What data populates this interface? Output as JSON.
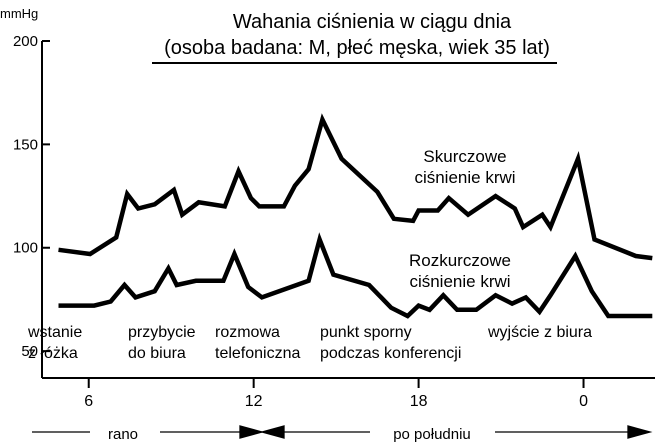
{
  "chart_data": {
    "type": "line",
    "title": "Wahania ciśnienia w ciągu dnia",
    "subtitle": "(osoba badana: M, płeć męska, wiek 35 lat)",
    "y_label": "mmHg",
    "xlim": [
      4.3,
      26.6
    ],
    "xticks": [
      6,
      12,
      18,
      {
        "value": 24,
        "label": "0"
      }
    ],
    "ylim": [
      37,
      200
    ],
    "yticks": [
      50,
      100,
      150,
      200
    ],
    "series": [
      {
        "name": "Skurczowe ciśnienie krwi",
        "color": "#000000",
        "x": [
          4.9,
          6.05,
          7,
          7.4,
          7.8,
          8.4,
          9.1,
          9.4,
          10,
          10.95,
          11.45,
          11.9,
          12.2,
          13.1,
          13.5,
          14,
          14.5,
          15.2,
          16.5,
          17.1,
          17.8,
          18,
          18.7,
          19.1,
          19.8,
          20.8,
          21.5,
          21.8,
          22.5,
          22.8,
          23.8,
          24.4,
          25.9,
          26.5
        ],
        "values": [
          99,
          97,
          105,
          126,
          119,
          121,
          128,
          116,
          122,
          120,
          137,
          124,
          120,
          120,
          130,
          138,
          162,
          143,
          127,
          114,
          113,
          118,
          118,
          124,
          116,
          125,
          119,
          110,
          116,
          110,
          143,
          104,
          96,
          95
        ]
      },
      {
        "name": "Rozkurczowe ciśnienie krwi",
        "color": "#000000",
        "x": [
          4.9,
          6.2,
          6.8,
          7.3,
          7.7,
          8.4,
          8.9,
          9.2,
          9.9,
          10.9,
          11.3,
          11.8,
          12.3,
          14,
          14.4,
          14.9,
          16.2,
          17,
          17.6,
          18,
          18.4,
          18.9,
          19.4,
          20.1,
          20.8,
          21.4,
          21.9,
          22.4,
          22.8,
          23.7,
          24.3,
          24.9,
          26.5
        ],
        "values": [
          72,
          72,
          74,
          82,
          76,
          79,
          90,
          82,
          84,
          84,
          97,
          81,
          76,
          84,
          104,
          87,
          82,
          71,
          67,
          72,
          70,
          77,
          70,
          70,
          77,
          73,
          76,
          69,
          77,
          96,
          79,
          67,
          67
        ]
      }
    ],
    "annotations": [
      {
        "lines": [
          "wstanie",
          "z łóżka"
        ]
      },
      {
        "lines": [
          "przybycie",
          "do biura"
        ]
      },
      {
        "lines": [
          "rozmowa",
          "telefoniczna"
        ]
      },
      {
        "lines": [
          "punkt sporny",
          "podczas konferencji"
        ]
      },
      {
        "lines": [
          "wyjście z biura"
        ]
      }
    ],
    "periods": [
      "rano",
      "po południu"
    ]
  }
}
